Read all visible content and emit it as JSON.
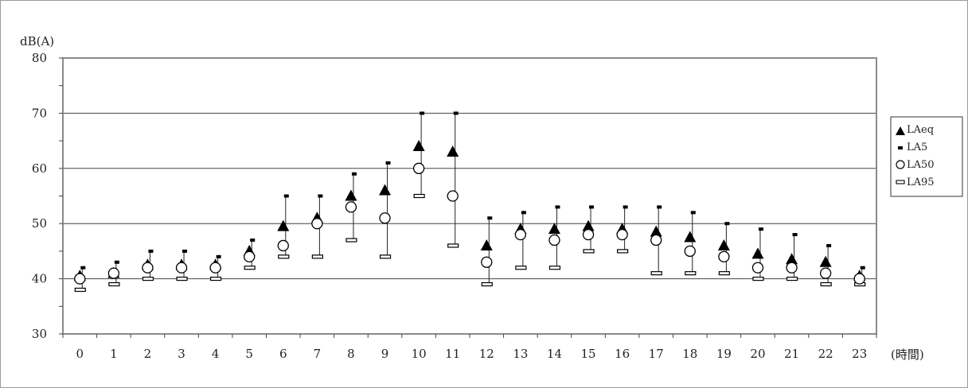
{
  "chart_data": {
    "type": "scatter",
    "ylabel": "dB(A)",
    "xlabel": "(時間)",
    "ylim": [
      30,
      80
    ],
    "yticks": [
      30,
      40,
      50,
      60,
      70,
      80
    ],
    "grid": true,
    "legend_position": "right",
    "categories": [
      "0",
      "1",
      "2",
      "3",
      "4",
      "5",
      "6",
      "7",
      "8",
      "9",
      "10",
      "11",
      "12",
      "13",
      "14",
      "15",
      "16",
      "17",
      "18",
      "19",
      "20",
      "21",
      "22",
      "23"
    ],
    "series": [
      {
        "name": "LAeq",
        "marker": "filled-triangle",
        "values": [
          40.5,
          41,
          42.5,
          42.5,
          42.5,
          45,
          49.5,
          51,
          55,
          56,
          64,
          63,
          46,
          49,
          49,
          49.5,
          49,
          48.5,
          47.5,
          46,
          44.5,
          43.5,
          43,
          40.5
        ]
      },
      {
        "name": "LA5",
        "marker": "dash",
        "values": [
          42,
          43,
          45,
          45,
          44,
          47,
          55,
          55,
          59,
          61,
          70,
          70,
          51,
          52,
          53,
          53,
          53,
          53,
          52,
          50,
          49,
          48,
          46,
          42
        ]
      },
      {
        "name": "LA50",
        "marker": "open-circle",
        "values": [
          40,
          41,
          42,
          42,
          42,
          44,
          46,
          50,
          53,
          51,
          60,
          55,
          43,
          48,
          47,
          48,
          48,
          47,
          45,
          44,
          42,
          42,
          41,
          40
        ]
      },
      {
        "name": "LA95",
        "marker": "hollow-bar",
        "values": [
          38,
          39,
          40,
          40,
          40,
          42,
          44,
          44,
          47,
          44,
          55,
          46,
          39,
          42,
          42,
          45,
          45,
          41,
          41,
          41,
          40,
          40,
          39,
          39
        ]
      }
    ]
  }
}
